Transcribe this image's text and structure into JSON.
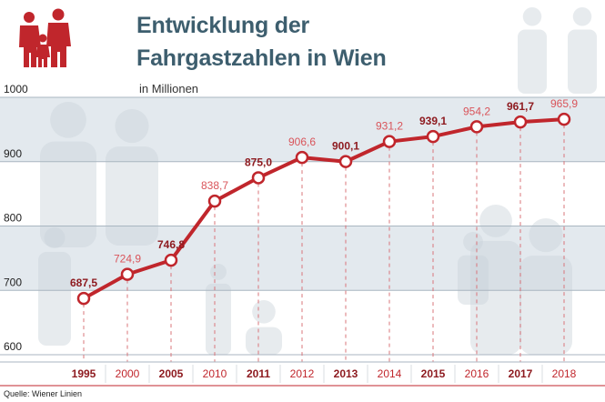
{
  "title_line1": "Entwicklung der",
  "title_line2": "Fahrgastzahlen in Wien",
  "unit": "in Millionen",
  "source": "Quelle: Wiener Linien",
  "colors": {
    "accent": "#c0262c",
    "title": "#3d5e6e",
    "band": "#e3e9ee",
    "figures": "#c9d2d9"
  },
  "icons": [
    "family-icon"
  ],
  "chart_data": {
    "type": "line",
    "title": "Entwicklung der Fahrgastzahlen in Wien",
    "ylabel": "in Millionen",
    "ylim": [
      600,
      1000
    ],
    "yticks": [
      600,
      700,
      800,
      900,
      1000
    ],
    "categories": [
      "1995",
      "2000",
      "2005",
      "2010",
      "2011",
      "2012",
      "2013",
      "2014",
      "2015",
      "2016",
      "2017",
      "2018"
    ],
    "values": [
      687.5,
      724.9,
      746.8,
      838.7,
      875.0,
      906.6,
      900.1,
      931.2,
      939.1,
      954.2,
      961.7,
      965.9
    ],
    "labels": [
      "687,5",
      "724,9",
      "746,8",
      "838,7",
      "875,0",
      "906,6",
      "900,1",
      "931,2",
      "939,1",
      "954,2",
      "961,7",
      "965,9"
    ],
    "bold_labels": [
      "1995",
      "2005",
      "2011",
      "2013",
      "2015",
      "2017"
    ],
    "grid": true
  }
}
